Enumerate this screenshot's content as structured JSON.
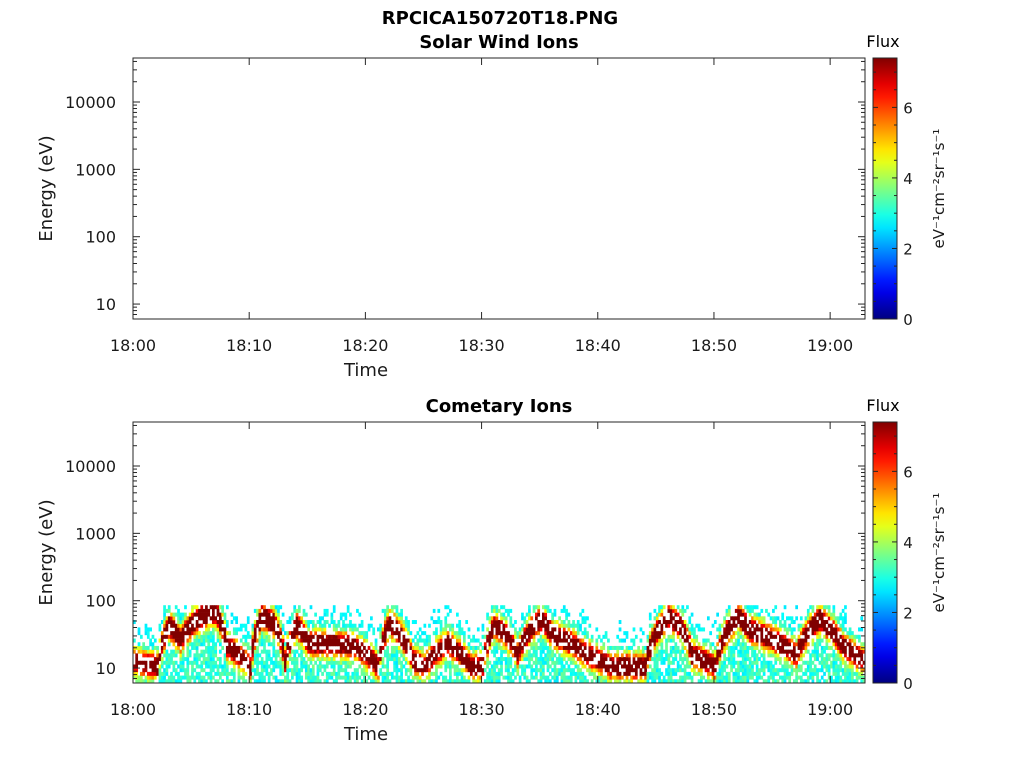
{
  "figure_title": "RPCICA150720T18.PNG",
  "chart_data": [
    {
      "type": "heatmap",
      "title": "Solar Wind Ions",
      "xlabel": "Time",
      "ylabel": "Energy (eV)",
      "y_scale": "log",
      "ylim": [
        6,
        45000
      ],
      "y_ticks": [
        10,
        100,
        1000,
        10000
      ],
      "y_tick_labels": [
        "10",
        "100",
        "1000",
        "10000"
      ],
      "x_range": [
        "18:00",
        "19:03"
      ],
      "x_ticks": [
        "18:00",
        "18:10",
        "18:20",
        "18:30",
        "18:40",
        "18:50",
        "19:00"
      ],
      "colorbar": {
        "title": "Flux",
        "label": "eV⁻¹cm⁻²sr⁻¹s⁻¹",
        "range": [
          0,
          7.4
        ],
        "ticks": [
          "0",
          "2",
          "4",
          "6"
        ],
        "colormap": "jet"
      },
      "data": "empty — no flux recorded"
    },
    {
      "type": "heatmap",
      "title": "Cometary Ions",
      "xlabel": "Time",
      "ylabel": "Energy (eV)",
      "y_scale": "log",
      "ylim": [
        6,
        45000
      ],
      "y_ticks": [
        10,
        100,
        1000,
        10000
      ],
      "y_tick_labels": [
        "10",
        "100",
        "1000",
        "10000"
      ],
      "x_range": [
        "18:00",
        "19:03"
      ],
      "x_ticks": [
        "18:00",
        "18:10",
        "18:20",
        "18:30",
        "18:40",
        "18:50",
        "19:00"
      ],
      "colorbar": {
        "title": "Flux",
        "label": "eV⁻¹cm⁻²sr⁻¹s⁻¹",
        "range": [
          0,
          7.4
        ],
        "ticks": [
          "0",
          "2",
          "4",
          "6"
        ],
        "colormap": "jet"
      },
      "energy_ceiling_eV": 80,
      "peak_energy_eV": {
        "minutes": [
          0,
          2,
          3,
          4,
          6,
          7,
          8,
          10,
          11,
          12,
          13,
          14,
          15,
          17,
          19,
          21,
          22,
          24,
          25,
          27,
          29,
          30,
          31,
          32,
          33,
          35,
          36,
          37,
          39,
          41,
          43,
          44,
          46,
          47,
          48,
          50,
          52,
          53,
          55,
          57,
          59,
          60,
          61,
          62,
          63
        ],
        "energy": [
          12,
          10,
          40,
          25,
          60,
          65,
          20,
          10,
          55,
          45,
          12,
          40,
          22,
          22,
          20,
          10,
          45,
          12,
          10,
          22,
          10,
          10,
          40,
          30,
          15,
          50,
          30,
          25,
          15,
          10,
          10,
          10,
          55,
          40,
          15,
          10,
          55,
          35,
          25,
          15,
          50,
          35,
          20,
          15,
          12
        ],
        "intensity": [
          5.8,
          6.0,
          7.0,
          6.8,
          7.2,
          7.0,
          6.2,
          6.0,
          7.0,
          7.2,
          6.0,
          6.8,
          6.5,
          6.2,
          6.0,
          6.2,
          6.8,
          6.6,
          6.0,
          6.2,
          6.0,
          5.9,
          6.2,
          6.4,
          6.0,
          6.5,
          6.8,
          6.6,
          6.0,
          6.2,
          7.2,
          6.5,
          7.0,
          6.8,
          6.4,
          6.0,
          6.5,
          6.8,
          6.6,
          6.2,
          6.8,
          6.8,
          6.4,
          6.0,
          5.6
        ]
      }
    }
  ]
}
